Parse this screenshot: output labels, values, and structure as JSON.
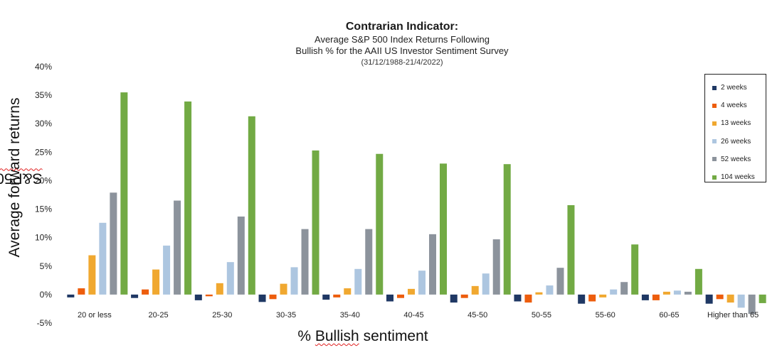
{
  "chart_data": {
    "type": "bar",
    "title": "Contrarian Indicator:",
    "subtitle_lines": [
      "Average S&P 500 Index Returns Following",
      "Bullish % for the AAII US Investor Sentiment Survey"
    ],
    "date_range": "(31/12/1988-21/4/2022)",
    "xlabel": "% Bullish sentiment",
    "ylabel": "Average forward S&P500 returns",
    "ylim": [
      -5,
      40
    ],
    "yticks": [
      -5,
      0,
      5,
      10,
      15,
      20,
      25,
      30,
      35,
      40
    ],
    "ytick_labels": [
      "-5%",
      "0%",
      "5%",
      "10%",
      "15%",
      "20%",
      "25%",
      "30%",
      "35%",
      "40%"
    ],
    "categories": [
      "20 or less",
      "20-25",
      "25-30",
      "30-35",
      "35-40",
      "40-45",
      "45-50",
      "50-55",
      "55-60",
      "60-65",
      "Higher than 65"
    ],
    "series": [
      {
        "name": "2 weeks",
        "color": "#1f3864",
        "values": [
          -0.5,
          -0.6,
          -1.0,
          -1.3,
          -0.9,
          -1.2,
          -1.4,
          -1.2,
          -1.6,
          -1.0,
          -1.6
        ]
      },
      {
        "name": "4 weeks",
        "color": "#ed5d0d",
        "values": [
          1.1,
          0.9,
          -0.3,
          -0.8,
          -0.5,
          -0.6,
          -0.6,
          -1.4,
          -1.2,
          -1.0,
          -0.8
        ]
      },
      {
        "name": "13 weeks",
        "color": "#f0a830",
        "values": [
          6.9,
          4.4,
          2.0,
          1.9,
          1.1,
          1.0,
          1.5,
          0.4,
          -0.5,
          0.5,
          -1.4
        ]
      },
      {
        "name": "26 weeks",
        "color": "#adc6e0",
        "values": [
          12.6,
          8.6,
          5.7,
          4.8,
          4.5,
          4.2,
          3.7,
          1.6,
          0.9,
          0.7,
          -2.3
        ]
      },
      {
        "name": "52 weeks",
        "color": "#8c939c",
        "values": [
          17.9,
          16.5,
          13.7,
          11.5,
          11.5,
          10.6,
          9.7,
          4.7,
          2.2,
          0.5,
          -3.4
        ]
      },
      {
        "name": "104 weeks",
        "color": "#72aa44",
        "values": [
          35.5,
          33.9,
          31.3,
          25.3,
          24.7,
          23.0,
          22.9,
          15.7,
          8.8,
          4.5,
          -1.5
        ]
      }
    ],
    "legend_position": "top-right",
    "grid": false
  }
}
